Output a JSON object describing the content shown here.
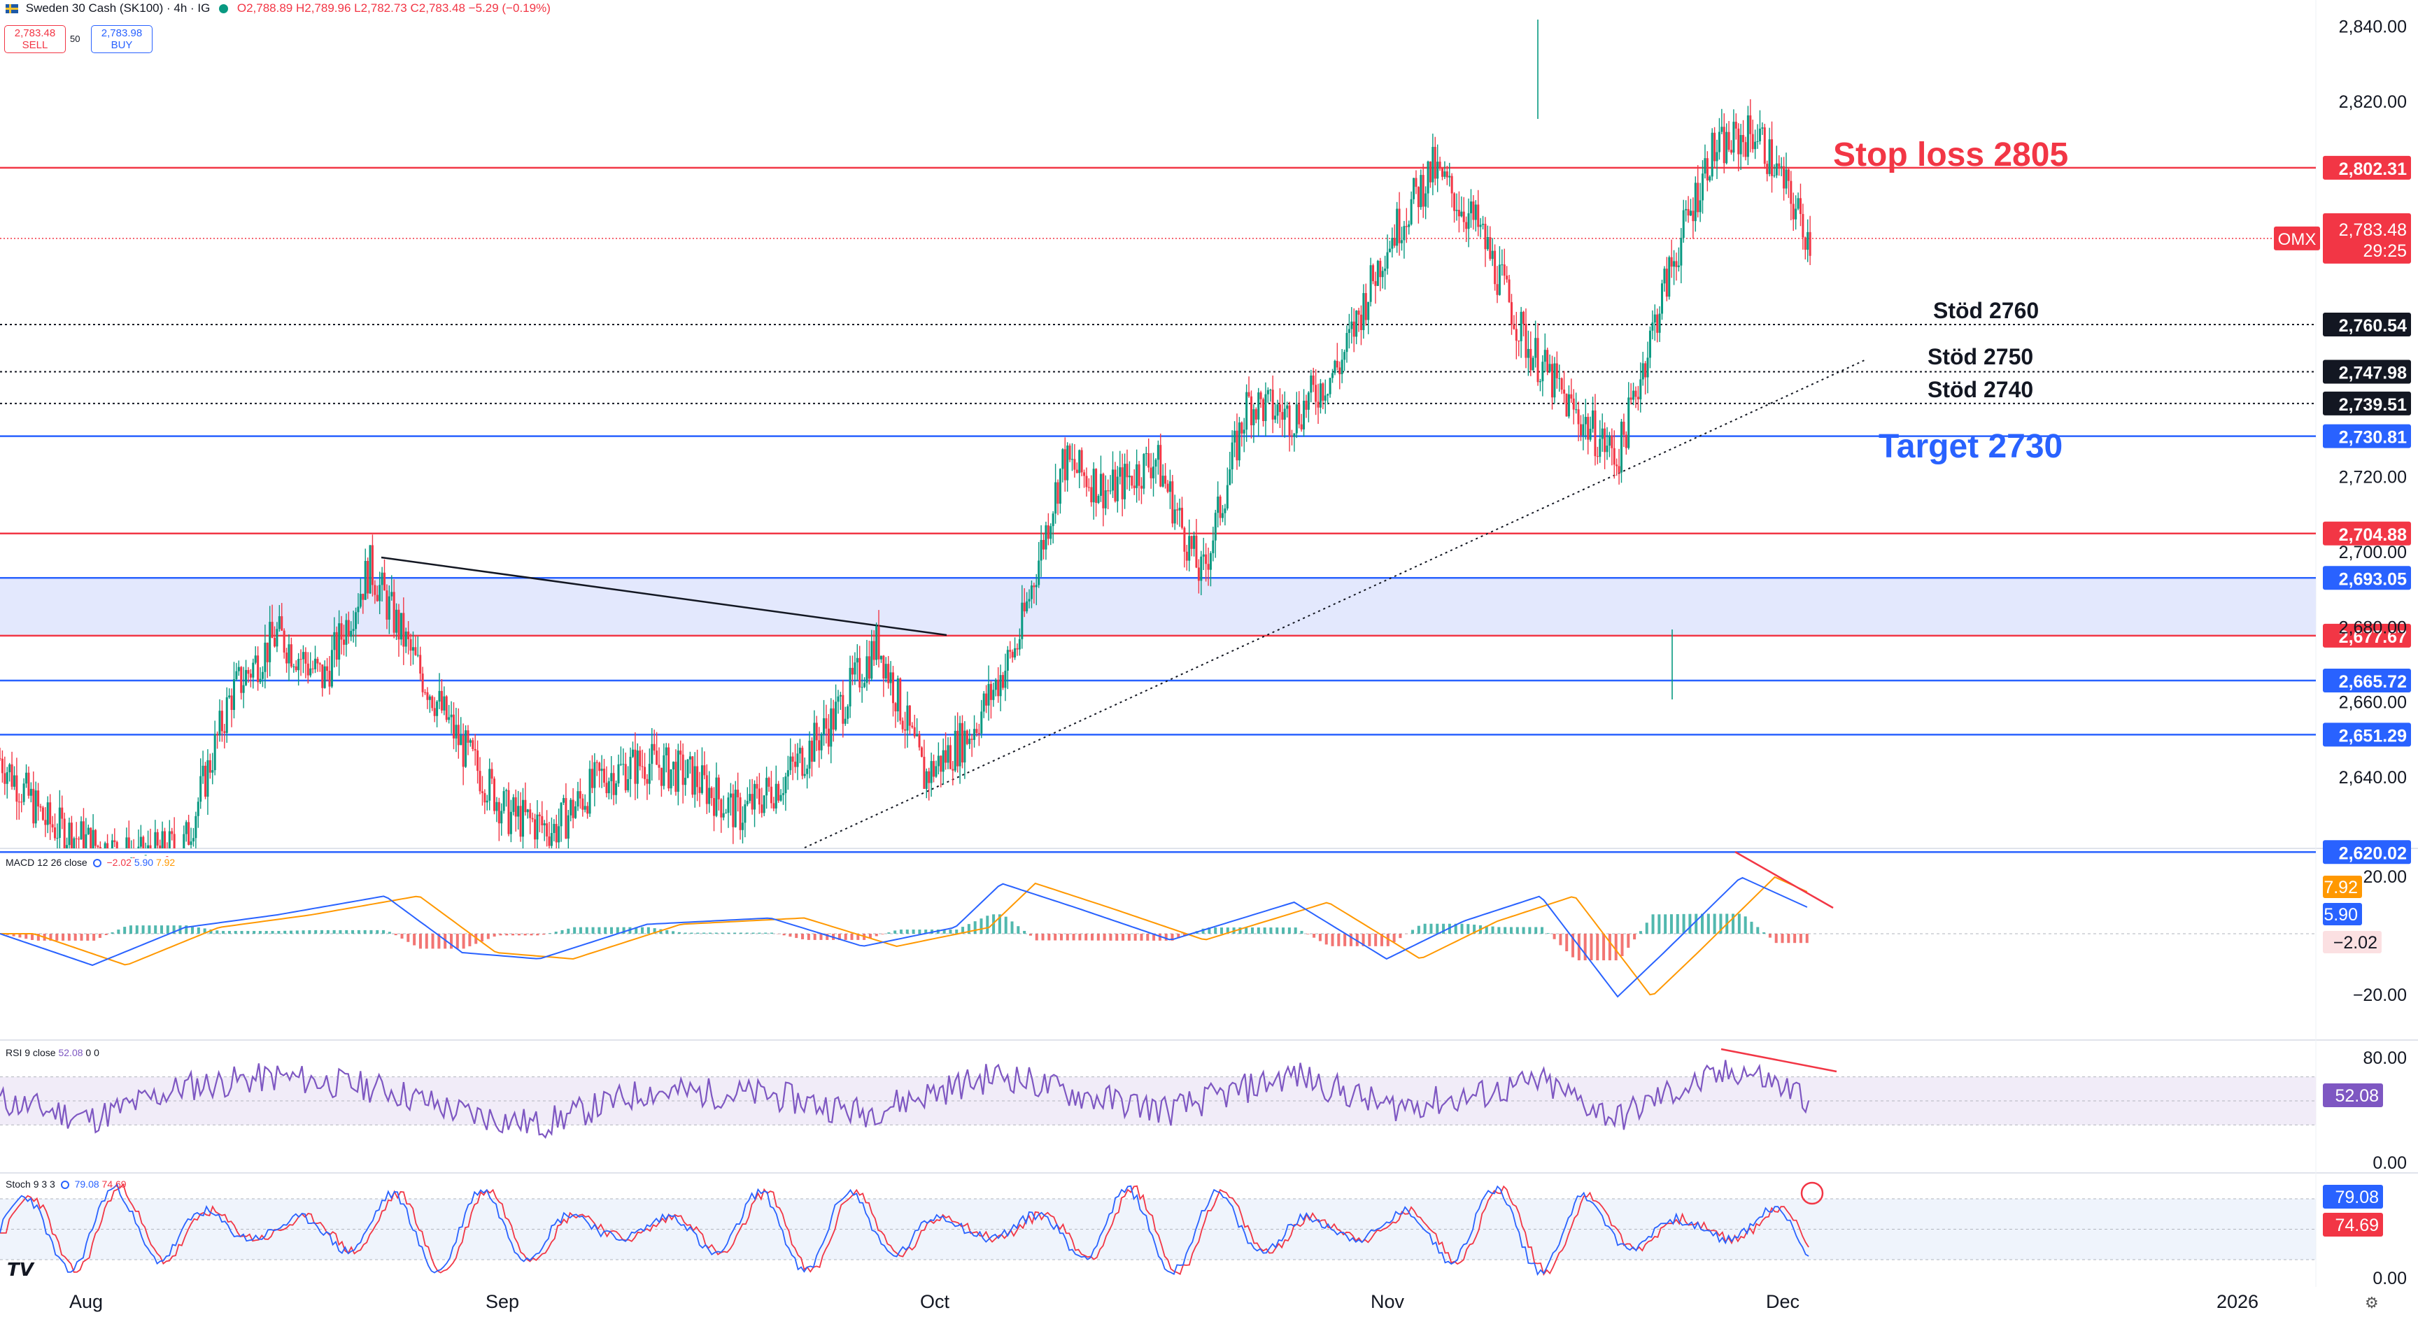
{
  "header": {
    "symbol": "Sweden 30 Cash (SK100) · 4h · IG",
    "ohlc": "O2,788.89 H2,789.96 L2,782.73 C2,783.48 −5.29 (−0.19%)",
    "sell_price": "2,783.48",
    "sell_label": "SELL",
    "spread": "50",
    "buy_price": "2,783.98",
    "buy_label": "BUY"
  },
  "colors": {
    "up": "#089981",
    "down": "#f23645",
    "blue_line": "#2962ff",
    "red_line": "#f23645",
    "zone_fill": "#e3e8fd",
    "macd": "#2962ff",
    "signal": "#ff9800",
    "rsi": "#7e57c2",
    "stoch_k": "#2962ff",
    "stoch_d": "#f23645"
  },
  "price_axis": {
    "ticks": [
      "2,840.00",
      "2,820.00",
      "2,720.00",
      "2,700.00",
      "2,680.00",
      "2,660.00",
      "2,640.00"
    ],
    "range": [
      2621,
      2847
    ]
  },
  "x_axis": {
    "labels": [
      "Aug",
      "Sep",
      "Oct",
      "Nov",
      "Dec",
      "2026"
    ]
  },
  "levels": [
    {
      "price": 2802.31,
      "label": "2,802.31",
      "color": "red",
      "style": "solid"
    },
    {
      "price": 2760.54,
      "label": "2,760.54",
      "color": "black",
      "style": "dotted"
    },
    {
      "price": 2747.98,
      "label": "2,747.98",
      "color": "black",
      "style": "dotted"
    },
    {
      "price": 2739.51,
      "label": "2,739.51",
      "color": "black",
      "style": "dotted"
    },
    {
      "price": 2730.81,
      "label": "2,730.81",
      "color": "blue",
      "style": "solid"
    },
    {
      "price": 2704.88,
      "label": "2,704.88",
      "color": "red",
      "style": "solid"
    },
    {
      "price": 2693.05,
      "label": "2,693.05",
      "color": "blue",
      "style": "solid"
    },
    {
      "price": 2677.67,
      "label": "2,677.67",
      "color": "red",
      "style": "solid"
    },
    {
      "price": 2665.72,
      "label": "2,665.72",
      "color": "blue",
      "style": "solid"
    },
    {
      "price": 2651.29,
      "label": "2,651.29",
      "color": "blue",
      "style": "solid"
    },
    {
      "price": 2620.02,
      "label": "2,620.02",
      "color": "blue",
      "style": "solid"
    }
  ],
  "current_price": {
    "ticker": "OMX",
    "price": "2,783.48",
    "countdown": "29:25",
    "value": 2783.48
  },
  "annotations": {
    "stop_loss": "Stop loss 2805",
    "stod_2760": "Stöd 2760",
    "stod_2750": "Stöd 2750",
    "stod_2740": "Stöd 2740",
    "target": "Target 2730"
  },
  "macd": {
    "legend_name": "MACD 12 26 close",
    "legend_values": [
      "−2.02",
      "5.90",
      "7.92"
    ],
    "ticks": [
      "20.00",
      "−20.00"
    ],
    "badges": {
      "signal": "7.92",
      "macd": "5.90",
      "hist": "−2.02"
    }
  },
  "rsi": {
    "legend_name": "RSI 9 close",
    "legend_values": [
      "52.08",
      "0",
      "0"
    ],
    "ticks": [
      "80.00",
      "0.00"
    ],
    "badge": "52.08"
  },
  "stoch": {
    "legend_name": "Stoch 9 3 3",
    "legend_values": [
      "79.08",
      "74.69"
    ],
    "ticks": [
      "0.00"
    ],
    "badge_k": "79.08",
    "badge_d": "74.69"
  },
  "chart_data": {
    "type": "candlestick",
    "timeframe": "4h",
    "title": "Sweden 30 Cash (SK100)",
    "series": [
      {
        "name": "price_path",
        "x": [
          0,
          30,
          60,
          90,
          120,
          150,
          180,
          210,
          240,
          270,
          300,
          330,
          360,
          390,
          420,
          450,
          480,
          510,
          540,
          570,
          600,
          630,
          660,
          690,
          720,
          750,
          780,
          810,
          840,
          870,
          900,
          930,
          960,
          990,
          1020,
          1050,
          1080,
          1110,
          1140,
          1160,
          1175
        ],
        "values": [
          2645,
          2628,
          2622,
          2618,
          2622,
          2662,
          2678,
          2666,
          2696,
          2670,
          2648,
          2630,
          2626,
          2640,
          2644,
          2640,
          2630,
          2640,
          2655,
          2676,
          2640,
          2652,
          2675,
          2724,
          2716,
          2725,
          2693,
          2740,
          2736,
          2750,
          2782,
          2802,
          2786,
          2756,
          2738,
          2725,
          2770,
          2806,
          2812,
          2796,
          2783
        ]
      },
      {
        "name": "macd_path",
        "x": [
          0,
          60,
          120,
          180,
          250,
          300,
          350,
          420,
          500,
          560,
          620,
          650,
          700,
          760,
          840,
          900,
          950,
          1000,
          1050,
          1080,
          1130,
          1175
        ],
        "values": [
          0,
          -10,
          2,
          6,
          12,
          -6,
          -8,
          3,
          5,
          -4,
          2,
          16,
          8,
          -2,
          10,
          -8,
          4,
          12,
          -20,
          -6,
          18,
          8
        ]
      },
      {
        "name": "rsi_path",
        "x": [
          0,
          60,
          120,
          180,
          250,
          300,
          350,
          420,
          500,
          560,
          620,
          650,
          700,
          760,
          840,
          900,
          950,
          1000,
          1050,
          1080,
          1130,
          1175
        ],
        "values": [
          50,
          35,
          62,
          70,
          60,
          40,
          30,
          58,
          55,
          40,
          62,
          72,
          55,
          42,
          72,
          45,
          52,
          66,
          35,
          55,
          76,
          52
        ]
      }
    ]
  }
}
